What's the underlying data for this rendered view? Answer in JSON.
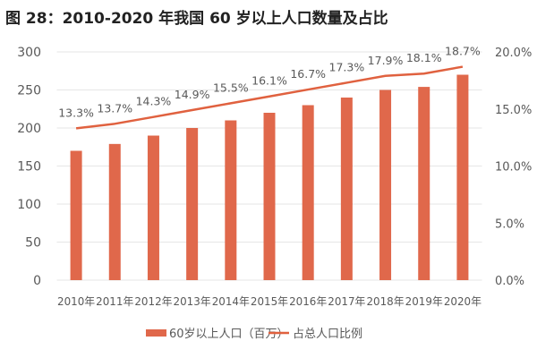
{
  "title": "图 28：2010-2020 年我国 60 岁以上人口数量及占比",
  "colors": {
    "bar": "#E0684B",
    "line": "#E0613F",
    "grid": "#E6E6E6",
    "text": "#595959"
  },
  "chart_data": {
    "type": "bar",
    "categories": [
      "2010年",
      "2011年",
      "2012年",
      "2013年",
      "2014年",
      "2015年",
      "2016年",
      "2017年",
      "2018年",
      "2019年",
      "2020年"
    ],
    "series": [
      {
        "name": "60岁以上人口（百万）",
        "type": "bar",
        "axis": "left",
        "values": [
          170,
          179,
          190,
          200,
          210,
          220,
          230,
          240,
          250,
          254,
          270
        ]
      },
      {
        "name": "占总人口比例",
        "type": "line",
        "axis": "right",
        "values": [
          13.3,
          13.7,
          14.3,
          14.9,
          15.5,
          16.1,
          16.7,
          17.3,
          17.9,
          18.1,
          18.7
        ],
        "labels": [
          "13.3%",
          "13.7%",
          "14.3%",
          "14.9%",
          "15.5%",
          "16.1%",
          "16.7%",
          "17.3%",
          "17.9%",
          "18.1%",
          "18.7%"
        ]
      }
    ],
    "ylim": [
      0,
      300
    ],
    "yticks": [
      "0",
      "50",
      "100",
      "150",
      "200",
      "250",
      "300"
    ],
    "y2lim": [
      0,
      20
    ],
    "y2ticks": [
      "0.0%",
      "5.0%",
      "10.0%",
      "15.0%",
      "20.0%"
    ],
    "grid": true,
    "legend": "bottom"
  }
}
